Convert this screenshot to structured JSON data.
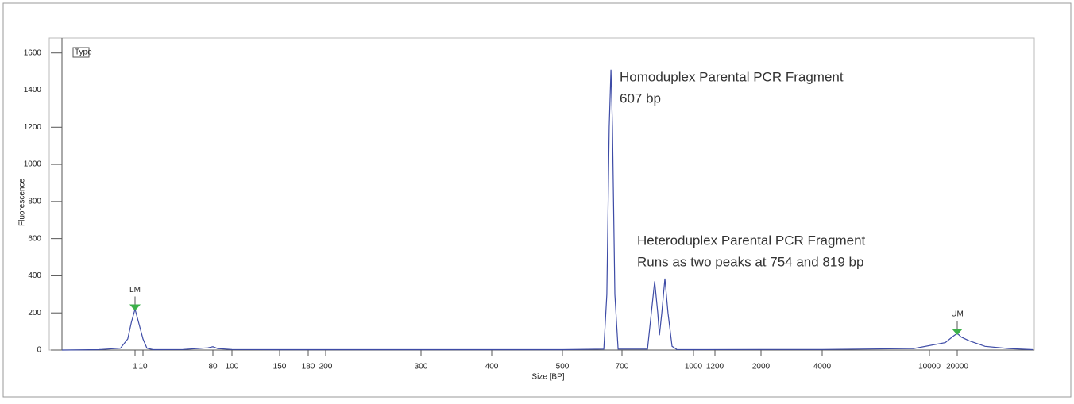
{
  "chart_data": {
    "type": "line",
    "x_label": "Size [BP]",
    "y_label": "Fluorescence",
    "legend_title": "Type",
    "xlim": [
      0,
      30000
    ],
    "xticks": [
      1,
      10,
      80,
      100,
      150,
      180,
      200,
      300,
      400,
      500,
      700,
      1000,
      1200,
      2000,
      4000,
      10000,
      20000
    ],
    "ylim": [
      0,
      1680
    ],
    "yticks": [
      0,
      200,
      400,
      600,
      800,
      1000,
      1200,
      1400,
      1600
    ],
    "series": [
      {
        "color": "#3d4ba6",
        "x": [
          0,
          0.5,
          0.8,
          0.9,
          0.95,
          1,
          5,
          10,
          14,
          20,
          50,
          64,
          75,
          80,
          85,
          100,
          150,
          200,
          300,
          400,
          500,
          639,
          649,
          657,
          663,
          668,
          676,
          687,
          807,
          823,
          837,
          850,
          857,
          867,
          880,
          893,
          910,
          930,
          1000,
          2000,
          4000,
          9111,
          15714,
          18571,
          20000,
          20526,
          21579,
          23684,
          26842,
          30000
        ],
        "values": [
          0,
          2,
          10,
          60,
          150,
          220,
          150,
          60,
          10,
          2,
          3,
          8,
          12,
          18,
          8,
          3,
          2,
          2,
          2,
          2,
          2,
          5,
          300,
          1200,
          1510,
          1200,
          300,
          5,
          5,
          200,
          370,
          200,
          80,
          200,
          385,
          200,
          20,
          3,
          2,
          3,
          3,
          8,
          40,
          75,
          90,
          70,
          50,
          20,
          8,
          2
        ]
      }
    ],
    "markers": [
      {
        "label": "LM",
        "x": 1,
        "y": 220,
        "color": "#3cb04a"
      },
      {
        "label": "UM",
        "x": 20000,
        "y": 90,
        "color": "#3cb04a"
      }
    ],
    "annotations": [
      {
        "lines": [
          "Homoduplex Parental PCR Fragment",
          "607 bp"
        ]
      },
      {
        "lines": [
          "Heteroduplex Parental PCR Fragment",
          "Runs as two peaks at 754 and 819 bp"
        ]
      }
    ]
  }
}
